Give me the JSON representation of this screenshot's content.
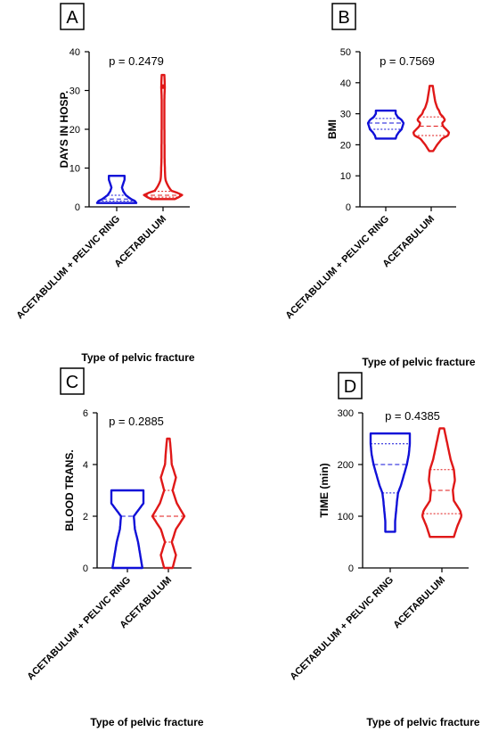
{
  "colors": {
    "group1": "#1010d8",
    "group2": "#e01818",
    "axis": "#000000"
  },
  "chart_data": [
    {
      "type": "violin",
      "panel": "A",
      "ylabel": "DAYS IN HOSP.",
      "xlabel": "Type of pelvic fracture",
      "annotation": "p = 0.2479",
      "ylim": [
        0,
        40
      ],
      "yticks": [
        0,
        10,
        20,
        30,
        40
      ],
      "categories": [
        "ACETABULUM + PELVIC RING",
        "ACETABULUM"
      ],
      "series": [
        {
          "category": "ACETABULUM + PELVIC RING",
          "color": "blue",
          "min": 1,
          "max": 8,
          "median": 2,
          "q1": 1.5,
          "q3": 3,
          "density": [
            [
              1,
              0.75
            ],
            [
              1.5,
              0.7
            ],
            [
              2,
              0.55
            ],
            [
              2.5,
              0.45
            ],
            [
              3,
              0.35
            ],
            [
              4,
              0.25
            ],
            [
              5,
              0.2
            ],
            [
              6,
              0.25
            ],
            [
              7,
              0.3
            ],
            [
              8,
              0.3
            ]
          ]
        },
        {
          "category": "ACETABULUM",
          "color": "red",
          "min": 2,
          "max": 34,
          "median": 3,
          "q1": 2.5,
          "q3": 4,
          "points": [
            31
          ],
          "density": [
            [
              2,
              0.6
            ],
            [
              2.5,
              0.8
            ],
            [
              3,
              1.0
            ],
            [
              3.5,
              0.8
            ],
            [
              4,
              0.45
            ],
            [
              5,
              0.3
            ],
            [
              6,
              0.2
            ],
            [
              7,
              0.12
            ],
            [
              9,
              0.1
            ],
            [
              12,
              0.08
            ],
            [
              20,
              0.07
            ],
            [
              28,
              0.07
            ],
            [
              31,
              0.09
            ],
            [
              34,
              0.07
            ]
          ]
        }
      ]
    },
    {
      "type": "violin",
      "panel": "B",
      "ylabel": "BMI",
      "xlabel": "Type of pelvic fracture",
      "annotation": "p = 0.7569",
      "ylim": [
        0,
        50
      ],
      "yticks": [
        0,
        10,
        20,
        30,
        40,
        50
      ],
      "categories": [
        "ACETABULUM + PELVIC RING",
        "ACETABULUM"
      ],
      "series": [
        {
          "category": "ACETABULUM + PELVIC RING",
          "color": "blue",
          "min": 22,
          "max": 31,
          "median": 27,
          "q1": 25,
          "q3": 28.5,
          "density": [
            [
              22,
              0.5
            ],
            [
              23,
              0.55
            ],
            [
              24,
              0.65
            ],
            [
              25,
              0.8
            ],
            [
              26,
              0.85
            ],
            [
              27,
              0.9
            ],
            [
              28,
              0.8
            ],
            [
              29,
              0.6
            ],
            [
              30,
              0.5
            ],
            [
              31,
              0.5
            ]
          ]
        },
        {
          "category": "ACETABULUM",
          "color": "red",
          "min": 18,
          "max": 39,
          "median": 26,
          "q1": 23,
          "q3": 29,
          "density": [
            [
              18,
              0.1
            ],
            [
              20,
              0.3
            ],
            [
              22,
              0.55
            ],
            [
              23,
              0.85
            ],
            [
              24,
              0.9
            ],
            [
              25,
              0.75
            ],
            [
              26,
              0.6
            ],
            [
              27,
              0.55
            ],
            [
              28,
              0.7
            ],
            [
              29,
              0.6
            ],
            [
              30,
              0.45
            ],
            [
              31,
              0.4
            ],
            [
              32,
              0.3
            ],
            [
              34,
              0.2
            ],
            [
              36,
              0.15
            ],
            [
              38,
              0.1
            ],
            [
              39,
              0.08
            ]
          ]
        }
      ]
    },
    {
      "type": "violin",
      "panel": "C",
      "ylabel": "BLOOD TRANS.",
      "xlabel": "Type of pelvic fracture",
      "annotation": "p = 0.2885",
      "ylim": [
        0,
        6
      ],
      "yticks": [
        0,
        2,
        4,
        6
      ],
      "categories": [
        "ACETABULUM + PELVIC RING",
        "ACETABULUM"
      ],
      "series": [
        {
          "category": "ACETABULUM + PELVIC RING",
          "color": "blue",
          "min": 0,
          "max": 3,
          "median": 2,
          "q1": 0,
          "q3": 3,
          "density": [
            [
              0,
              0.7
            ],
            [
              0.5,
              0.6
            ],
            [
              1,
              0.5
            ],
            [
              1.5,
              0.35
            ],
            [
              2,
              0.3
            ],
            [
              2.5,
              0.75
            ],
            [
              3,
              0.75
            ]
          ]
        },
        {
          "category": "ACETABULUM",
          "color": "red",
          "min": 0,
          "max": 5,
          "median": 2,
          "q1": 1,
          "q3": 3,
          "density": [
            [
              0,
              0.25
            ],
            [
              0.5,
              0.45
            ],
            [
              1,
              0.2
            ],
            [
              1.5,
              0.45
            ],
            [
              2,
              0.95
            ],
            [
              2.5,
              0.5
            ],
            [
              3,
              0.25
            ],
            [
              3.5,
              0.45
            ],
            [
              4,
              0.2
            ],
            [
              4.5,
              0.15
            ],
            [
              5,
              0.08
            ]
          ]
        }
      ]
    },
    {
      "type": "violin",
      "panel": "D",
      "ylabel": "TIME (min)",
      "xlabel": "Type of pelvic fracture",
      "annotation": "p = 0.4385",
      "ylim": [
        0,
        300
      ],
      "yticks": [
        0,
        100,
        200,
        300
      ],
      "categories": [
        "ACETABULUM + PELVIC RING",
        "ACETABULUM"
      ],
      "series": [
        {
          "category": "ACETABULUM + PELVIC RING",
          "color": "blue",
          "min": 70,
          "max": 260,
          "median": 200,
          "q1": 145,
          "q3": 240,
          "density": [
            [
              70,
              0.25
            ],
            [
              90,
              0.25
            ],
            [
              110,
              0.3
            ],
            [
              130,
              0.35
            ],
            [
              145,
              0.4
            ],
            [
              160,
              0.55
            ],
            [
              180,
              0.7
            ],
            [
              200,
              0.85
            ],
            [
              220,
              0.95
            ],
            [
              240,
              1.0
            ],
            [
              260,
              1.0
            ]
          ]
        },
        {
          "category": "ACETABULUM",
          "color": "red",
          "min": 60,
          "max": 270,
          "median": 150,
          "q1": 105,
          "q3": 190,
          "density": [
            [
              60,
              0.55
            ],
            [
              80,
              0.7
            ],
            [
              100,
              0.9
            ],
            [
              110,
              0.85
            ],
            [
              130,
              0.55
            ],
            [
              150,
              0.5
            ],
            [
              170,
              0.6
            ],
            [
              190,
              0.55
            ],
            [
              210,
              0.4
            ],
            [
              240,
              0.25
            ],
            [
              260,
              0.15
            ],
            [
              270,
              0.1
            ]
          ]
        }
      ]
    }
  ]
}
